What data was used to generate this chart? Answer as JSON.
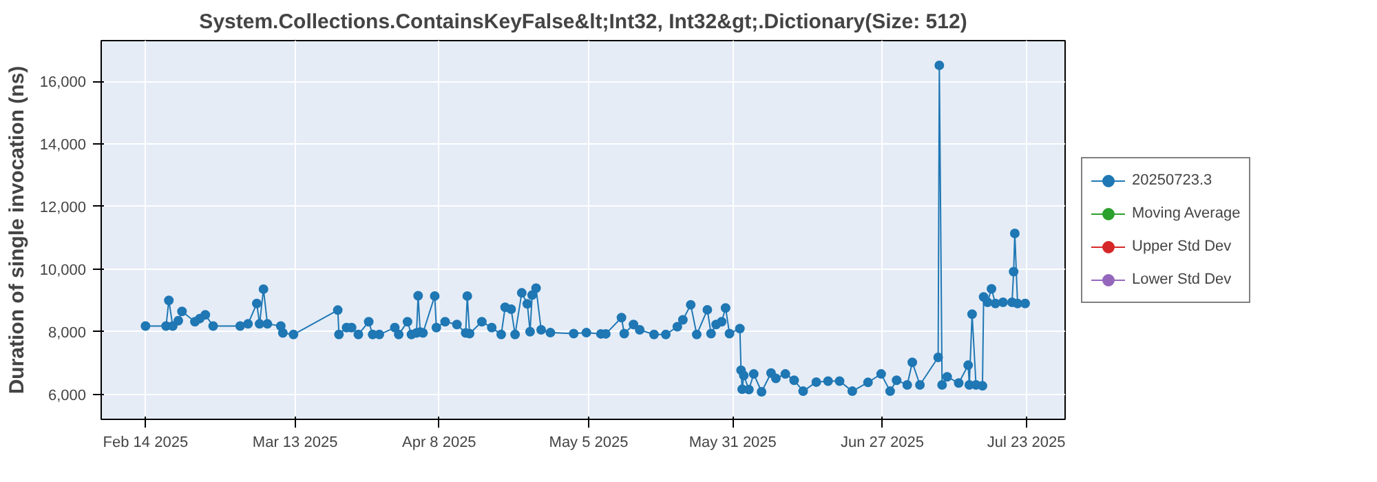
{
  "chart_data": {
    "type": "line",
    "title": "System.Collections.ContainsKeyFalse&lt;Int32, Int32&gt;.Dictionary(Size: 512)",
    "ylabel": "Duration of single invocation (ns)",
    "xlim": [
      "2025-02-06",
      "2025-07-30"
    ],
    "xticks": [
      {
        "value": "2025-02-14",
        "label": "Feb 14 2025"
      },
      {
        "value": "2025-03-13",
        "label": "Mar 13 2025"
      },
      {
        "value": "2025-04-08",
        "label": "Apr 8 2025"
      },
      {
        "value": "2025-05-05",
        "label": "May 5 2025"
      },
      {
        "value": "2025-05-31",
        "label": "May 31 2025"
      },
      {
        "value": "2025-06-27",
        "label": "Jun 27 2025"
      },
      {
        "value": "2025-07-23",
        "label": "Jul 23 2025"
      }
    ],
    "ylim": [
      5200,
      17300
    ],
    "yticks": [
      {
        "value": 6000,
        "label": "6,000"
      },
      {
        "value": 8000,
        "label": "8,000"
      },
      {
        "value": 10000,
        "label": "10,000"
      },
      {
        "value": 12000,
        "label": "12,000"
      },
      {
        "value": 14000,
        "label": "14,000"
      },
      {
        "value": 16000,
        "label": "16,000"
      }
    ],
    "grid": true,
    "legend": "right",
    "marker": "circle",
    "line_style": "solid",
    "x": [
      "2025-02-14",
      "2025-02-17T17:00",
      "2025-02-18T05:00",
      "2025-02-18T22:00",
      "2025-02-19T22:00",
      "2025-02-20T14:00",
      "2025-02-22T22:00",
      "2025-02-23T19:00",
      "2025-02-24T19:00",
      "2025-02-26T05:00",
      "2025-03-03T02:00",
      "2025-03-04T12:00",
      "2025-03-06T02:00",
      "2025-03-06T14:00",
      "2025-03-07T07:00",
      "2025-03-08T00:00",
      "2025-03-10T10:00",
      "2025-03-10T19:00",
      "2025-03-12T17:00",
      "2025-03-20T17:00",
      "2025-03-20T22:00",
      "2025-03-22T07:00",
      "2025-03-23T05:00",
      "2025-03-24T10:00",
      "2025-03-26T07:00",
      "2025-03-27T00:00",
      "2025-03-28T05:00",
      "2025-03-31T00:00",
      "2025-03-31T17:00",
      "2025-04-02T07:00",
      "2025-04-03T00:00",
      "2025-04-03T22:00",
      "2025-04-04T05:00",
      "2025-04-04T14:00",
      "2025-04-05T02:00",
      "2025-04-07T05:00",
      "2025-04-07T12:00",
      "2025-04-09T02:00",
      "2025-04-11T05:00",
      "2025-04-12T19:00",
      "2025-04-13T02:00",
      "2025-04-13T12:00",
      "2025-04-15T17:00",
      "2025-04-17T12:00",
      "2025-04-19T05:00",
      "2025-04-19T22:00",
      "2025-04-21T00:00",
      "2025-04-21T17:00",
      "2025-04-22T22:00",
      "2025-04-23T22:00",
      "2025-04-24T10:00",
      "2025-04-24T19:00",
      "2025-04-25T12:00",
      "2025-04-26T10:00",
      "2025-04-28T02:00",
      "2025-05-02T07:00",
      "2025-05-04T14:00",
      "2025-05-07T05:00",
      "2025-05-08T02:00",
      "2025-05-10T22:00",
      "2025-05-11T10:00",
      "2025-05-13T02:00",
      "2025-05-14T05:00",
      "2025-05-16T19:00",
      "2025-05-18T22:00",
      "2025-05-21T00:00",
      "2025-05-22T00:00",
      "2025-05-23T10:00",
      "2025-05-24T12:00",
      "2025-05-26T10:00",
      "2025-05-27T02:00",
      "2025-05-28T00:00",
      "2025-05-29T00:00",
      "2025-05-29T17:00",
      "2025-05-30T10:00",
      "2025-06-01T07:00",
      "2025-06-01T12:00",
      "2025-06-01T17:00",
      "2025-06-02T00:00",
      "2025-06-02T22:00",
      "2025-06-03T19:00",
      "2025-06-05T05:00",
      "2025-06-06T22:00",
      "2025-06-07T19:00",
      "2025-06-09T12:00",
      "2025-06-11T02:00",
      "2025-06-12T17:00",
      "2025-06-15T02:00",
      "2025-06-17T05:00",
      "2025-06-19T07:00",
      "2025-06-21T14:00",
      "2025-06-24T10:00",
      "2025-06-26T19:00",
      "2025-06-28T10:00",
      "2025-06-29T14:00",
      "2025-07-01T12:00",
      "2025-07-02T10:00",
      "2025-07-03T19:00",
      "2025-07-07T02:00",
      "2025-07-07T07:00",
      "2025-07-07T19:00",
      "2025-07-08T17:00",
      "2025-07-10T19:00",
      "2025-07-12T12:00",
      "2025-07-12T17:00",
      "2025-07-13T05:00",
      "2025-07-13T22:00",
      "2025-07-15T02:00",
      "2025-07-15T07:00",
      "2025-07-16T00:00",
      "2025-07-16T17:00",
      "2025-07-17T10:00",
      "2025-07-18T19:00",
      "2025-07-20T10:00",
      "2025-07-20T17:00",
      "2025-07-20T22:00",
      "2025-07-21T10:00",
      "2025-07-22T19:00"
    ],
    "series": [
      {
        "name": "20250723.3",
        "color": "#1f77b4",
        "values": [
          8180,
          8180,
          9000,
          8180,
          8350,
          8650,
          8320,
          8420,
          8540,
          8180,
          8180,
          8250,
          8900,
          8250,
          9360,
          8250,
          8180,
          7960,
          7910,
          8690,
          7910,
          8130,
          8130,
          7910,
          8320,
          7910,
          7910,
          8130,
          7910,
          8320,
          7910,
          7960,
          9150,
          7990,
          7960,
          9140,
          8130,
          8320,
          8230,
          7960,
          9140,
          7940,
          8320,
          8130,
          7910,
          8780,
          8720,
          7910,
          9240,
          8890,
          8000,
          9170,
          9390,
          8060,
          7970,
          7940,
          7970,
          7930,
          7930,
          8450,
          7940,
          8230,
          8060,
          7910,
          7910,
          8160,
          8380,
          8860,
          7910,
          8700,
          7940,
          8230,
          8320,
          8760,
          7940,
          8100,
          6770,
          6160,
          6600,
          6150,
          6650,
          6080,
          6680,
          6510,
          6650,
          6450,
          6100,
          6390,
          6420,
          6420,
          6100,
          6380,
          6650,
          6100,
          6450,
          6300,
          7020,
          6300,
          7180,
          16510,
          6300,
          6560,
          6360,
          6930,
          6300,
          8560,
          6300,
          6270,
          9110,
          8940,
          9370,
          8900,
          8940,
          8940,
          9920,
          11140,
          8900,
          8900
        ]
      },
      {
        "name": "Moving Average",
        "color": "#2ca02c",
        "values": [
          null,
          null,
          null,
          null,
          null,
          null,
          null,
          null,
          null,
          null,
          null,
          null,
          null,
          null,
          null,
          null,
          null,
          null,
          null,
          null,
          null,
          null,
          null,
          null,
          null,
          null,
          null,
          null,
          null,
          null,
          null,
          null,
          null,
          null,
          null,
          null,
          null,
          null,
          null,
          null,
          null,
          null,
          null,
          null,
          null,
          null,
          null,
          null,
          null,
          null,
          null,
          null,
          null,
          null,
          null,
          null,
          null,
          null,
          null,
          null,
          null,
          null,
          null,
          null,
          null,
          null,
          null,
          null,
          null,
          null,
          null,
          null,
          null,
          null,
          null,
          null,
          null,
          null,
          null,
          null,
          null,
          null,
          null,
          null,
          null,
          null,
          null,
          null,
          null,
          null,
          null,
          null,
          null,
          null,
          null,
          null,
          null,
          null,
          null,
          null,
          null,
          null,
          null,
          null,
          null,
          null,
          null,
          null,
          null,
          null,
          null,
          null,
          null,
          null,
          null,
          null,
          null,
          null
        ]
      },
      {
        "name": "Upper Std Dev",
        "color": "#d62728",
        "values": [
          null,
          null,
          null,
          null,
          null,
          null,
          null,
          null,
          null,
          null,
          null,
          null,
          null,
          null,
          null,
          null,
          null,
          null,
          null,
          null,
          null,
          null,
          null,
          null,
          null,
          null,
          null,
          null,
          null,
          null,
          null,
          null,
          null,
          null,
          null,
          null,
          null,
          null,
          null,
          null,
          null,
          null,
          null,
          null,
          null,
          null,
          null,
          null,
          null,
          null,
          null,
          null,
          null,
          null,
          null,
          null,
          null,
          null,
          null,
          null,
          null,
          null,
          null,
          null,
          null,
          null,
          null,
          null,
          null,
          null,
          null,
          null,
          null,
          null,
          null,
          null,
          null,
          null,
          null,
          null,
          null,
          null,
          null,
          null,
          null,
          null,
          null,
          null,
          null,
          null,
          null,
          null,
          null,
          null,
          null,
          null,
          null,
          null,
          null,
          null,
          null,
          null,
          null,
          null,
          null,
          null,
          null,
          null,
          null,
          null,
          null,
          null,
          null,
          null,
          null,
          null,
          null,
          null
        ]
      },
      {
        "name": "Lower Std Dev",
        "color": "#9467bd",
        "values": [
          null,
          null,
          null,
          null,
          null,
          null,
          null,
          null,
          null,
          null,
          null,
          null,
          null,
          null,
          null,
          null,
          null,
          null,
          null,
          null,
          null,
          null,
          null,
          null,
          null,
          null,
          null,
          null,
          null,
          null,
          null,
          null,
          null,
          null,
          null,
          null,
          null,
          null,
          null,
          null,
          null,
          null,
          null,
          null,
          null,
          null,
          null,
          null,
          null,
          null,
          null,
          null,
          null,
          null,
          null,
          null,
          null,
          null,
          null,
          null,
          null,
          null,
          null,
          null,
          null,
          null,
          null,
          null,
          null,
          null,
          null,
          null,
          null,
          null,
          null,
          null,
          null,
          null,
          null,
          null,
          null,
          null,
          null,
          null,
          null,
          null,
          null,
          null,
          null,
          null,
          null,
          null,
          null,
          null,
          null,
          null,
          null,
          null,
          null,
          null,
          null,
          null,
          null,
          null,
          null,
          null,
          null,
          null,
          null,
          null,
          null,
          null,
          null,
          null,
          null,
          null,
          null,
          null
        ]
      }
    ]
  }
}
